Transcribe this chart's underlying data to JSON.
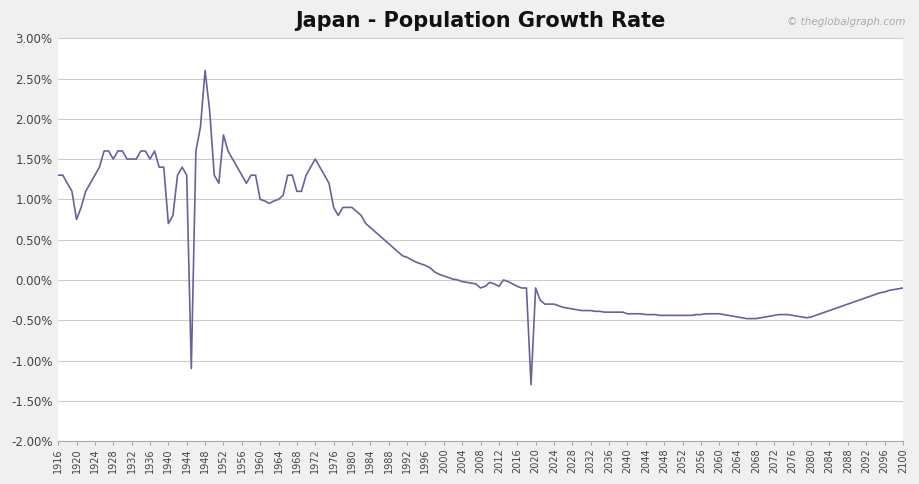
{
  "title": "Japan - Population Growth Rate",
  "watermark": "© theglobalgraph.com",
  "line_color": "#6B5F9E",
  "background_color": "#f0f0f0",
  "plot_background": "#ffffff",
  "grid_color": "#cccccc",
  "xlim": [
    1916,
    2100
  ],
  "ylim": [
    -0.02,
    0.03
  ],
  "yticks": [
    -0.02,
    -0.015,
    -0.01,
    -0.005,
    0.0,
    0.005,
    0.01,
    0.015,
    0.02,
    0.025,
    0.03
  ],
  "ytick_labels": [
    "-2.00%",
    "-1.50%",
    "-1.00%",
    "-0.50%",
    "0.00%",
    "0.50%",
    "1.00%",
    "1.50%",
    "2.00%",
    "2.50%",
    "3.00%"
  ],
  "xtick_step": 4,
  "years": [
    1916,
    1917,
    1918,
    1919,
    1920,
    1921,
    1922,
    1923,
    1924,
    1925,
    1926,
    1927,
    1928,
    1929,
    1930,
    1931,
    1932,
    1933,
    1934,
    1935,
    1936,
    1937,
    1938,
    1939,
    1940,
    1941,
    1942,
    1943,
    1944,
    1945,
    1946,
    1947,
    1948,
    1949,
    1950,
    1951,
    1952,
    1953,
    1954,
    1955,
    1956,
    1957,
    1958,
    1959,
    1960,
    1961,
    1962,
    1963,
    1964,
    1965,
    1966,
    1967,
    1968,
    1969,
    1970,
    1971,
    1972,
    1973,
    1974,
    1975,
    1976,
    1977,
    1978,
    1979,
    1980,
    1981,
    1982,
    1983,
    1984,
    1985,
    1986,
    1987,
    1988,
    1989,
    1990,
    1991,
    1992,
    1993,
    1994,
    1995,
    1996,
    1997,
    1998,
    1999,
    2000,
    2001,
    2002,
    2003,
    2004,
    2005,
    2006,
    2007,
    2008,
    2009,
    2010,
    2011,
    2012,
    2013,
    2014,
    2015,
    2016,
    2017,
    2018,
    2019,
    2020,
    2021,
    2022,
    2023,
    2024,
    2025,
    2026,
    2027,
    2028,
    2029,
    2030,
    2031,
    2032,
    2033,
    2034,
    2035,
    2036,
    2037,
    2038,
    2039,
    2040,
    2041,
    2042,
    2043,
    2044,
    2045,
    2046,
    2047,
    2048,
    2049,
    2050,
    2051,
    2052,
    2053,
    2054,
    2055,
    2056,
    2057,
    2058,
    2059,
    2060,
    2061,
    2062,
    2063,
    2064,
    2065,
    2066,
    2067,
    2068,
    2069,
    2070,
    2071,
    2072,
    2073,
    2074,
    2075,
    2076,
    2077,
    2078,
    2079,
    2080,
    2081,
    2082,
    2083,
    2084,
    2085,
    2086,
    2087,
    2088,
    2089,
    2090,
    2091,
    2092,
    2093,
    2094,
    2095,
    2096,
    2097,
    2098,
    2099,
    2100
  ],
  "values": [
    0.013,
    0.013,
    0.012,
    0.011,
    0.0075,
    0.009,
    0.011,
    0.012,
    0.013,
    0.014,
    0.016,
    0.016,
    0.015,
    0.016,
    0.016,
    0.015,
    0.015,
    0.015,
    0.016,
    0.016,
    0.015,
    0.016,
    0.014,
    0.014,
    0.007,
    0.008,
    0.013,
    0.014,
    0.013,
    -0.011,
    0.016,
    0.019,
    0.026,
    0.021,
    0.013,
    0.012,
    0.018,
    0.016,
    0.015,
    0.014,
    0.013,
    0.012,
    0.013,
    0.013,
    0.01,
    0.0098,
    0.0095,
    0.0098,
    0.01,
    0.0105,
    0.013,
    0.013,
    0.011,
    0.011,
    0.013,
    0.014,
    0.015,
    0.014,
    0.013,
    0.012,
    0.009,
    0.008,
    0.009,
    0.009,
    0.009,
    0.0085,
    0.008,
    0.007,
    0.0065,
    0.006,
    0.0055,
    0.005,
    0.0045,
    0.004,
    0.0035,
    0.003,
    0.0028,
    0.0025,
    0.0022,
    0.002,
    0.0018,
    0.0015,
    0.001,
    0.0007,
    0.0005,
    0.0003,
    0.0001,
    0.0,
    -0.0002,
    -0.0003,
    -0.0004,
    -0.0005,
    -0.001,
    -0.0008,
    -0.0003,
    -0.0005,
    -0.0008,
    0.0,
    -0.0002,
    -0.0005,
    -0.0008,
    -0.001,
    -0.001,
    -0.013,
    -0.001,
    -0.0025,
    -0.003,
    -0.003,
    -0.003,
    -0.0032,
    -0.0034,
    -0.0035,
    -0.0036,
    -0.0037,
    -0.0038,
    -0.0038,
    -0.0038,
    -0.0039,
    -0.0039,
    -0.004,
    -0.004,
    -0.004,
    -0.004,
    -0.004,
    -0.0042,
    -0.0042,
    -0.0042,
    -0.0042,
    -0.0043,
    -0.0043,
    -0.0043,
    -0.0044,
    -0.0044,
    -0.0044,
    -0.0044,
    -0.0044,
    -0.0044,
    -0.0044,
    -0.0044,
    -0.0043,
    -0.0043,
    -0.0042,
    -0.0042,
    -0.0042,
    -0.0042,
    -0.0043,
    -0.0044,
    -0.0045,
    -0.0046,
    -0.0047,
    -0.0048,
    -0.0048,
    -0.0048,
    -0.0047,
    -0.0046,
    -0.0045,
    -0.0044,
    -0.0043,
    -0.0043,
    -0.0043,
    -0.0044,
    -0.0045,
    -0.0046,
    -0.0047,
    -0.0046,
    -0.0044,
    -0.0042,
    -0.004,
    -0.0038,
    -0.0036,
    -0.0034,
    -0.0032,
    -0.003,
    -0.0028,
    -0.0026,
    -0.0024,
    -0.0022,
    -0.002,
    -0.0018,
    -0.0016,
    -0.0015,
    -0.0013,
    -0.0012,
    -0.0011,
    -0.001
  ]
}
